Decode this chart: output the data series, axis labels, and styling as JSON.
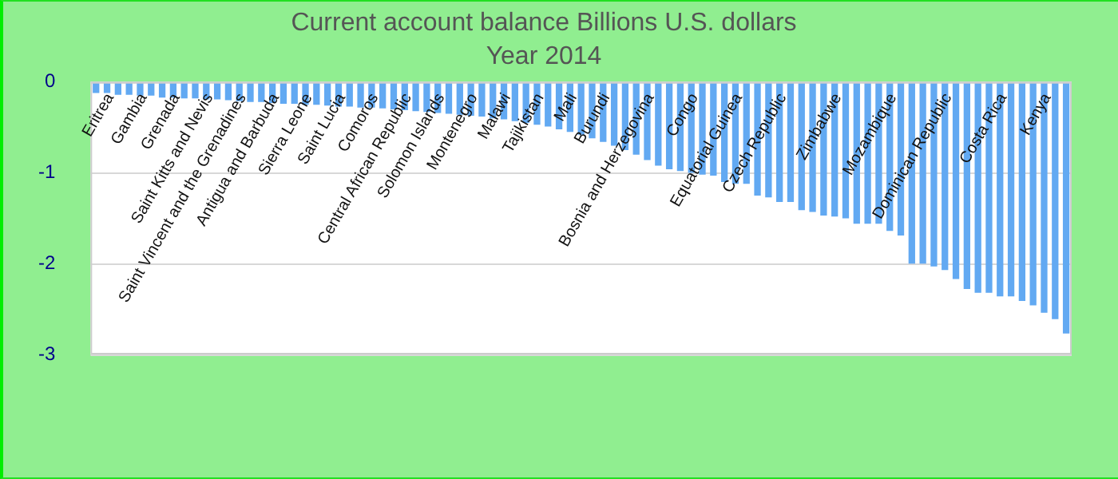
{
  "chart_data": {
    "type": "bar",
    "title": "Current account balance Billions U.S. dollars",
    "subtitle": "Year 2014",
    "categories": [
      null,
      "Eritrea",
      null,
      null,
      "Gambia",
      null,
      null,
      "Grenada",
      null,
      null,
      "Saint Kitts and Nevis",
      null,
      null,
      "Saint Vincent and the Grenadines",
      null,
      null,
      "Antigua and Barbuda",
      null,
      null,
      "Sierra Leone",
      null,
      null,
      "Saint Lucia",
      null,
      null,
      "Comoros",
      null,
      null,
      "Central African Republic",
      null,
      null,
      "Solomon Islands",
      null,
      null,
      "Montenegro",
      null,
      null,
      "Malawi",
      null,
      null,
      "Tajikistan",
      null,
      null,
      "Mali",
      null,
      null,
      "Burundi",
      null,
      null,
      null,
      "Bosnia and Herzegovina",
      null,
      null,
      null,
      "Congo",
      null,
      null,
      null,
      "Equatorial Guinea",
      null,
      null,
      null,
      "Czech Republic",
      null,
      null,
      null,
      null,
      "Zimbabwe",
      null,
      null,
      null,
      null,
      "Mozambique",
      null,
      null,
      null,
      null,
      "Dominican Republic",
      null,
      null,
      null,
      null,
      "Costa Rica",
      null,
      null,
      null,
      "Kenya",
      null,
      null
    ],
    "values": [
      -0.12,
      -0.12,
      -0.14,
      -0.14,
      -0.15,
      -0.15,
      -0.17,
      -0.17,
      -0.18,
      -0.18,
      -0.19,
      -0.19,
      -0.2,
      -0.21,
      -0.22,
      -0.22,
      -0.23,
      -0.24,
      -0.24,
      -0.25,
      -0.25,
      -0.26,
      -0.27,
      -0.27,
      -0.28,
      -0.28,
      -0.29,
      -0.3,
      -0.31,
      -0.32,
      -0.33,
      -0.34,
      -0.35,
      -0.36,
      -0.37,
      -0.38,
      -0.4,
      -0.41,
      -0.43,
      -0.45,
      -0.47,
      -0.49,
      -0.52,
      -0.55,
      -0.58,
      -0.62,
      -0.66,
      -0.7,
      -0.75,
      -0.8,
      -0.86,
      -0.92,
      -0.96,
      -0.98,
      -1.0,
      -1.02,
      -1.03,
      -1.1,
      -1.12,
      -1.12,
      -1.25,
      -1.27,
      -1.32,
      -1.32,
      -1.41,
      -1.43,
      -1.47,
      -1.48,
      -1.5,
      -1.56,
      -1.56,
      -1.56,
      -1.64,
      -1.69,
      -2.0,
      -2.0,
      -2.03,
      -2.07,
      -2.17,
      -2.28,
      -2.32,
      -2.32,
      -2.36,
      -2.36,
      -2.41,
      -2.46,
      -2.54,
      -2.61,
      -2.77
    ],
    "color": "#62a9f2",
    "ylim": [
      -3,
      0
    ],
    "yticks": [
      -3,
      -2,
      -1,
      0
    ],
    "grid": "y"
  }
}
